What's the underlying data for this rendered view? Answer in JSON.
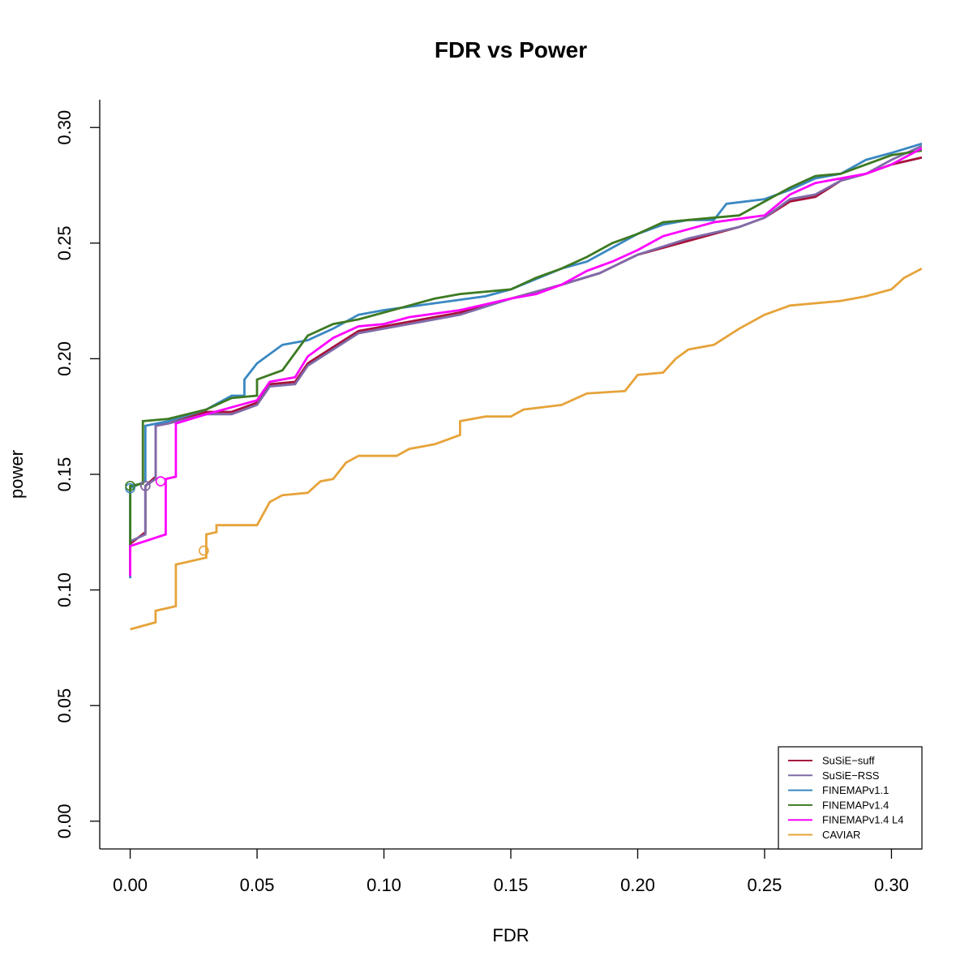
{
  "chart_data": {
    "type": "line",
    "title": "FDR vs Power",
    "xlabel": "FDR",
    "ylabel": "power",
    "xlim": [
      -0.012,
      0.312
    ],
    "ylim": [
      -0.012,
      0.312
    ],
    "xticks": [
      "0.00",
      "0.05",
      "0.10",
      "0.15",
      "0.20",
      "0.25",
      "0.30"
    ],
    "yticks": [
      "0.00",
      "0.05",
      "0.10",
      "0.15",
      "0.20",
      "0.25",
      "0.30"
    ],
    "grid": false,
    "legend_position": "bottom-right",
    "series": [
      {
        "name": "SuSiE−suff",
        "color": "#a6133c",
        "marker": {
          "x": 0.006,
          "y": 0.145
        },
        "points": [
          [
            0.0,
            0.106
          ],
          [
            0.0,
            0.12
          ],
          [
            0.006,
            0.125
          ],
          [
            0.006,
            0.145
          ],
          [
            0.01,
            0.149
          ],
          [
            0.01,
            0.171
          ],
          [
            0.015,
            0.172
          ],
          [
            0.03,
            0.177
          ],
          [
            0.04,
            0.177
          ],
          [
            0.05,
            0.181
          ],
          [
            0.055,
            0.189
          ],
          [
            0.065,
            0.19
          ],
          [
            0.07,
            0.198
          ],
          [
            0.08,
            0.205
          ],
          [
            0.09,
            0.212
          ],
          [
            0.1,
            0.214
          ],
          [
            0.11,
            0.216
          ],
          [
            0.13,
            0.22
          ],
          [
            0.15,
            0.226
          ],
          [
            0.17,
            0.232
          ],
          [
            0.185,
            0.237
          ],
          [
            0.2,
            0.245
          ],
          [
            0.22,
            0.251
          ],
          [
            0.24,
            0.257
          ],
          [
            0.25,
            0.261
          ],
          [
            0.26,
            0.268
          ],
          [
            0.27,
            0.27
          ],
          [
            0.28,
            0.277
          ],
          [
            0.29,
            0.28
          ],
          [
            0.3,
            0.284
          ],
          [
            0.312,
            0.287
          ]
        ]
      },
      {
        "name": "SuSiE−RSS",
        "color": "#7e6ba8",
        "marker": {
          "x": 0.006,
          "y": 0.145
        },
        "points": [
          [
            0.0,
            0.106
          ],
          [
            0.0,
            0.121
          ],
          [
            0.006,
            0.124
          ],
          [
            0.006,
            0.145
          ],
          [
            0.01,
            0.148
          ],
          [
            0.01,
            0.171
          ],
          [
            0.015,
            0.172
          ],
          [
            0.03,
            0.176
          ],
          [
            0.04,
            0.176
          ],
          [
            0.05,
            0.18
          ],
          [
            0.055,
            0.188
          ],
          [
            0.065,
            0.189
          ],
          [
            0.07,
            0.197
          ],
          [
            0.08,
            0.204
          ],
          [
            0.09,
            0.211
          ],
          [
            0.1,
            0.213
          ],
          [
            0.11,
            0.215
          ],
          [
            0.13,
            0.219
          ],
          [
            0.15,
            0.226
          ],
          [
            0.17,
            0.232
          ],
          [
            0.185,
            0.237
          ],
          [
            0.2,
            0.245
          ],
          [
            0.22,
            0.252
          ],
          [
            0.24,
            0.257
          ],
          [
            0.25,
            0.261
          ],
          [
            0.26,
            0.269
          ],
          [
            0.27,
            0.271
          ],
          [
            0.28,
            0.277
          ],
          [
            0.29,
            0.28
          ],
          [
            0.3,
            0.286
          ],
          [
            0.312,
            0.292
          ]
        ]
      },
      {
        "name": "FINEMAPv1.1",
        "color": "#3a88c2",
        "marker": {
          "x": 0.0,
          "y": 0.144
        },
        "points": [
          [
            0.0,
            0.105
          ],
          [
            0.0,
            0.144
          ],
          [
            0.006,
            0.147
          ],
          [
            0.006,
            0.171
          ],
          [
            0.015,
            0.173
          ],
          [
            0.03,
            0.178
          ],
          [
            0.04,
            0.184
          ],
          [
            0.045,
            0.184
          ],
          [
            0.045,
            0.191
          ],
          [
            0.05,
            0.198
          ],
          [
            0.06,
            0.206
          ],
          [
            0.07,
            0.208
          ],
          [
            0.08,
            0.213
          ],
          [
            0.09,
            0.219
          ],
          [
            0.1,
            0.221
          ],
          [
            0.12,
            0.224
          ],
          [
            0.14,
            0.227
          ],
          [
            0.15,
            0.23
          ],
          [
            0.17,
            0.239
          ],
          [
            0.18,
            0.242
          ],
          [
            0.19,
            0.248
          ],
          [
            0.2,
            0.254
          ],
          [
            0.21,
            0.258
          ],
          [
            0.22,
            0.26
          ],
          [
            0.23,
            0.26
          ],
          [
            0.235,
            0.267
          ],
          [
            0.25,
            0.269
          ],
          [
            0.26,
            0.273
          ],
          [
            0.27,
            0.278
          ],
          [
            0.28,
            0.28
          ],
          [
            0.29,
            0.286
          ],
          [
            0.3,
            0.289
          ],
          [
            0.312,
            0.293
          ]
        ]
      },
      {
        "name": "FINEMAPv1.4",
        "color": "#3d7a22",
        "marker": {
          "x": 0.0,
          "y": 0.145
        },
        "points": [
          [
            0.0,
            0.106
          ],
          [
            0.0,
            0.145
          ],
          [
            0.005,
            0.146
          ],
          [
            0.005,
            0.173
          ],
          [
            0.015,
            0.174
          ],
          [
            0.03,
            0.178
          ],
          [
            0.04,
            0.183
          ],
          [
            0.05,
            0.184
          ],
          [
            0.05,
            0.191
          ],
          [
            0.06,
            0.195
          ],
          [
            0.07,
            0.21
          ],
          [
            0.08,
            0.215
          ],
          [
            0.09,
            0.217
          ],
          [
            0.1,
            0.22
          ],
          [
            0.11,
            0.223
          ],
          [
            0.12,
            0.226
          ],
          [
            0.13,
            0.228
          ],
          [
            0.15,
            0.23
          ],
          [
            0.16,
            0.235
          ],
          [
            0.17,
            0.239
          ],
          [
            0.18,
            0.244
          ],
          [
            0.19,
            0.25
          ],
          [
            0.2,
            0.254
          ],
          [
            0.21,
            0.259
          ],
          [
            0.22,
            0.26
          ],
          [
            0.24,
            0.262
          ],
          [
            0.25,
            0.268
          ],
          [
            0.26,
            0.274
          ],
          [
            0.27,
            0.279
          ],
          [
            0.28,
            0.28
          ],
          [
            0.3,
            0.288
          ],
          [
            0.312,
            0.29
          ]
        ]
      },
      {
        "name": "FINEMAPv1.4 L4",
        "color": "#ff00ff",
        "marker": {
          "x": 0.012,
          "y": 0.147
        },
        "points": [
          [
            0.0,
            0.106
          ],
          [
            0.0,
            0.119
          ],
          [
            0.014,
            0.124
          ],
          [
            0.014,
            0.148
          ],
          [
            0.018,
            0.149
          ],
          [
            0.018,
            0.172
          ],
          [
            0.03,
            0.176
          ],
          [
            0.04,
            0.179
          ],
          [
            0.05,
            0.182
          ],
          [
            0.055,
            0.19
          ],
          [
            0.065,
            0.192
          ],
          [
            0.07,
            0.201
          ],
          [
            0.08,
            0.209
          ],
          [
            0.09,
            0.214
          ],
          [
            0.1,
            0.215
          ],
          [
            0.11,
            0.218
          ],
          [
            0.13,
            0.221
          ],
          [
            0.15,
            0.226
          ],
          [
            0.16,
            0.228
          ],
          [
            0.17,
            0.232
          ],
          [
            0.18,
            0.238
          ],
          [
            0.19,
            0.242
          ],
          [
            0.2,
            0.247
          ],
          [
            0.21,
            0.253
          ],
          [
            0.22,
            0.256
          ],
          [
            0.23,
            0.259
          ],
          [
            0.25,
            0.262
          ],
          [
            0.26,
            0.271
          ],
          [
            0.27,
            0.276
          ],
          [
            0.29,
            0.28
          ],
          [
            0.3,
            0.284
          ],
          [
            0.312,
            0.291
          ]
        ]
      },
      {
        "name": "CAVIAR",
        "color": "#e6a33a",
        "marker": {
          "x": 0.029,
          "y": 0.117
        },
        "points": [
          [
            0.0,
            0.083
          ],
          [
            0.01,
            0.086
          ],
          [
            0.01,
            0.091
          ],
          [
            0.018,
            0.093
          ],
          [
            0.018,
            0.111
          ],
          [
            0.03,
            0.114
          ],
          [
            0.03,
            0.124
          ],
          [
            0.034,
            0.125
          ],
          [
            0.034,
            0.128
          ],
          [
            0.05,
            0.128
          ],
          [
            0.055,
            0.138
          ],
          [
            0.06,
            0.141
          ],
          [
            0.07,
            0.142
          ],
          [
            0.075,
            0.147
          ],
          [
            0.08,
            0.148
          ],
          [
            0.085,
            0.155
          ],
          [
            0.09,
            0.158
          ],
          [
            0.105,
            0.158
          ],
          [
            0.11,
            0.161
          ],
          [
            0.12,
            0.163
          ],
          [
            0.13,
            0.167
          ],
          [
            0.13,
            0.173
          ],
          [
            0.14,
            0.175
          ],
          [
            0.15,
            0.175
          ],
          [
            0.155,
            0.178
          ],
          [
            0.17,
            0.18
          ],
          [
            0.18,
            0.185
          ],
          [
            0.195,
            0.186
          ],
          [
            0.2,
            0.193
          ],
          [
            0.21,
            0.194
          ],
          [
            0.215,
            0.2
          ],
          [
            0.22,
            0.204
          ],
          [
            0.23,
            0.206
          ],
          [
            0.24,
            0.213
          ],
          [
            0.25,
            0.219
          ],
          [
            0.26,
            0.223
          ],
          [
            0.27,
            0.224
          ],
          [
            0.28,
            0.225
          ],
          [
            0.29,
            0.227
          ],
          [
            0.3,
            0.23
          ],
          [
            0.305,
            0.235
          ],
          [
            0.312,
            0.239
          ]
        ]
      }
    ]
  }
}
